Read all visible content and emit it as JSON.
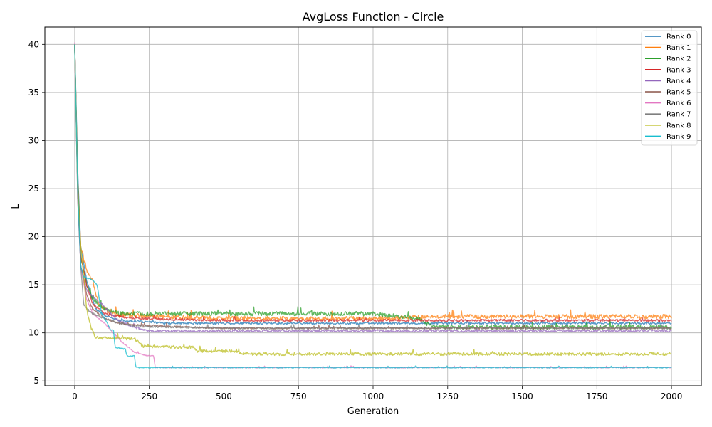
{
  "chart_data": {
    "type": "line",
    "title": "AvgLoss Function - Circle",
    "xlabel": "Generation",
    "ylabel": "L",
    "xlim": [
      -100,
      2100
    ],
    "ylim": [
      4.5,
      41.8
    ],
    "x_ticks": [
      0,
      250,
      500,
      750,
      1000,
      1250,
      1500,
      1750,
      2000
    ],
    "y_ticks": [
      5,
      10,
      15,
      20,
      25,
      30,
      35,
      40
    ],
    "grid": true,
    "legend_position": "top-right",
    "series": [
      {
        "name": "Rank 0",
        "color": "#1f77b4",
        "x": [
          0,
          10,
          20,
          40,
          70,
          100,
          150,
          200,
          270,
          300,
          500,
          1000,
          1500,
          2000
        ],
        "y": [
          40.0,
          27.0,
          19.0,
          15.5,
          12.5,
          11.8,
          11.3,
          11.2,
          11.1,
          11.0,
          11.0,
          11.0,
          11.0,
          11.0
        ],
        "noise": 0.1
      },
      {
        "name": "Rank 1",
        "color": "#ff7f0e",
        "x": [
          0,
          10,
          20,
          40,
          60,
          80,
          120,
          200,
          500,
          1000,
          1150,
          1200,
          1500,
          2000
        ],
        "y": [
          40.0,
          26.0,
          19.0,
          16.5,
          15.5,
          13.0,
          12.0,
          11.8,
          11.5,
          11.5,
          11.6,
          11.7,
          11.7,
          11.7
        ],
        "noise": 0.22
      },
      {
        "name": "Rank 2",
        "color": "#2ca02c",
        "x": [
          0,
          10,
          20,
          40,
          60,
          100,
          150,
          500,
          1000,
          1150,
          1200,
          1500,
          2000
        ],
        "y": [
          40.0,
          26.0,
          18.0,
          15.0,
          13.5,
          12.5,
          12.0,
          12.0,
          12.0,
          11.5,
          10.6,
          10.6,
          10.6
        ],
        "noise": 0.22
      },
      {
        "name": "Rank 3",
        "color": "#d62728",
        "x": [
          0,
          10,
          20,
          40,
          60,
          100,
          150,
          200,
          500,
          1000,
          1500,
          2000
        ],
        "y": [
          40.0,
          25.0,
          18.0,
          15.0,
          13.0,
          12.0,
          11.7,
          11.5,
          11.3,
          11.3,
          11.3,
          11.3
        ],
        "noise": 0.12
      },
      {
        "name": "Rank 4",
        "color": "#9467bd",
        "x": [
          0,
          10,
          20,
          40,
          60,
          90,
          120,
          150,
          200,
          250,
          500,
          1000,
          1500,
          2000
        ],
        "y": [
          40.0,
          25.0,
          17.0,
          14.5,
          13.8,
          13.0,
          12.0,
          11.2,
          10.6,
          10.2,
          10.2,
          10.2,
          10.2,
          10.2
        ],
        "noise": 0.12
      },
      {
        "name": "Rank 5",
        "color": "#8c564b",
        "x": [
          0,
          10,
          20,
          40,
          60,
          100,
          150,
          200,
          500,
          1000,
          1500,
          2000
        ],
        "y": [
          40.0,
          25.0,
          17.0,
          14.0,
          12.5,
          11.5,
          11.0,
          10.8,
          10.5,
          10.5,
          10.5,
          10.5
        ],
        "noise": 0.1
      },
      {
        "name": "Rank 6",
        "color": "#e377c2",
        "x": [
          0,
          10,
          20,
          40,
          60,
          100,
          130,
          160,
          200,
          220,
          250,
          265,
          270,
          500,
          1000,
          1500,
          2000
        ],
        "y": [
          40.2,
          24.0,
          17.0,
          13.5,
          12.0,
          11.0,
          10.0,
          9.0,
          8.0,
          7.8,
          7.6,
          7.6,
          6.4,
          6.4,
          6.4,
          6.4,
          6.4
        ],
        "noise": 0.05
      },
      {
        "name": "Rank 7",
        "color": "#7f7f7f",
        "x": [
          0,
          10,
          20,
          30,
          40,
          60,
          100,
          150,
          200,
          500,
          1000,
          1500,
          2000
        ],
        "y": [
          40.0,
          24.0,
          17.0,
          13.0,
          12.5,
          12.0,
          11.5,
          11.0,
          10.7,
          10.5,
          10.5,
          10.5,
          10.5
        ],
        "noise": 0.1
      },
      {
        "name": "Rank 8",
        "color": "#bcbd22",
        "x": [
          0,
          10,
          20,
          30,
          40,
          55,
          70,
          200,
          230,
          400,
          410,
          540,
          560,
          1000,
          1500,
          2000
        ],
        "y": [
          40.0,
          25.0,
          19.0,
          16.0,
          12.5,
          10.5,
          9.5,
          9.4,
          8.6,
          8.5,
          8.1,
          8.1,
          7.8,
          7.8,
          7.8,
          7.8
        ],
        "noise": 0.15
      },
      {
        "name": "Rank 9",
        "color": "#17becf",
        "x": [
          0,
          10,
          20,
          30,
          60,
          75,
          90,
          110,
          120,
          130,
          135,
          170,
          175,
          200,
          205,
          500,
          1000,
          1500,
          2000
        ],
        "y": [
          40.0,
          25.0,
          17.0,
          15.8,
          15.5,
          15.0,
          12.0,
          11.0,
          10.3,
          10.3,
          8.5,
          8.3,
          7.6,
          7.6,
          6.4,
          6.4,
          6.4,
          6.4,
          6.4
        ],
        "noise": 0.05
      }
    ]
  }
}
